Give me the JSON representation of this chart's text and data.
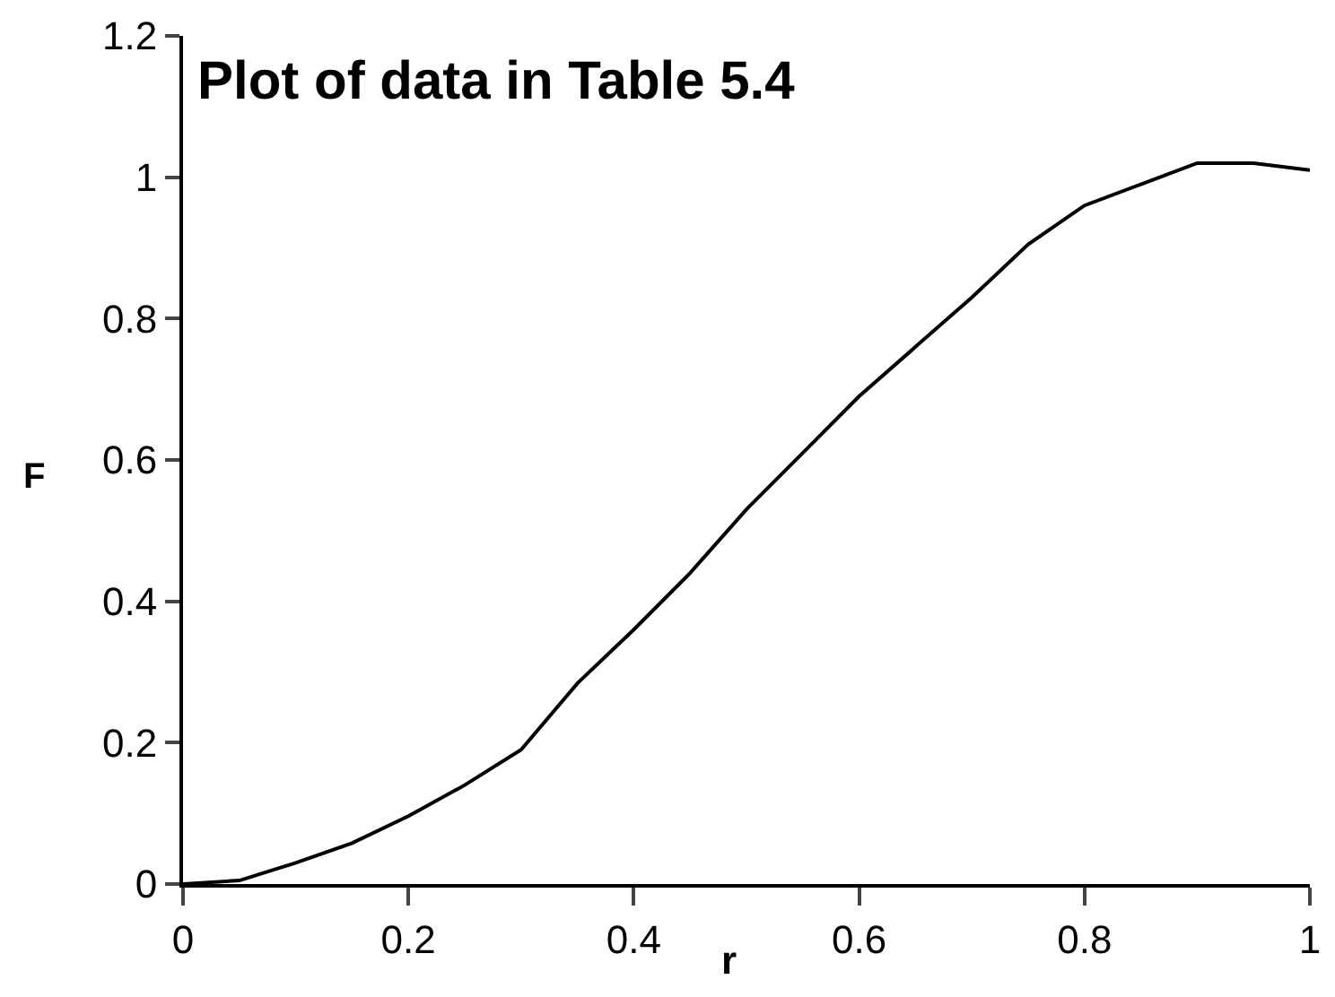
{
  "chart_data": {
    "type": "line",
    "title": "Plot of data in Table 5.4",
    "xlabel": "r",
    "ylabel": "F",
    "x": [
      0,
      0.05,
      0.1,
      0.15,
      0.2,
      0.25,
      0.3,
      0.35,
      0.4,
      0.45,
      0.5,
      0.55,
      0.6,
      0.65,
      0.7,
      0.75,
      0.8,
      0.85,
      0.9,
      0.95,
      1
    ],
    "series": [
      {
        "color": "#000000",
        "values": [
          0,
          0.005,
          0.03,
          0.058,
          0.096,
          0.14,
          0.19,
          0.284,
          0.36,
          0.44,
          0.53,
          0.61,
          0.69,
          0.76,
          0.83,
          0.905,
          0.96,
          0.99,
          1.02,
          1.02,
          1.01
        ]
      }
    ],
    "xlim": [
      0,
      1
    ],
    "xticks": [
      0,
      0.2,
      0.4,
      0.6,
      0.8,
      1
    ],
    "ylim": [
      0,
      1.2
    ],
    "yticks": [
      0,
      0.2,
      0.4,
      0.6,
      0.8,
      1,
      1.2
    ],
    "marker": "none",
    "line_style": "solid"
  }
}
